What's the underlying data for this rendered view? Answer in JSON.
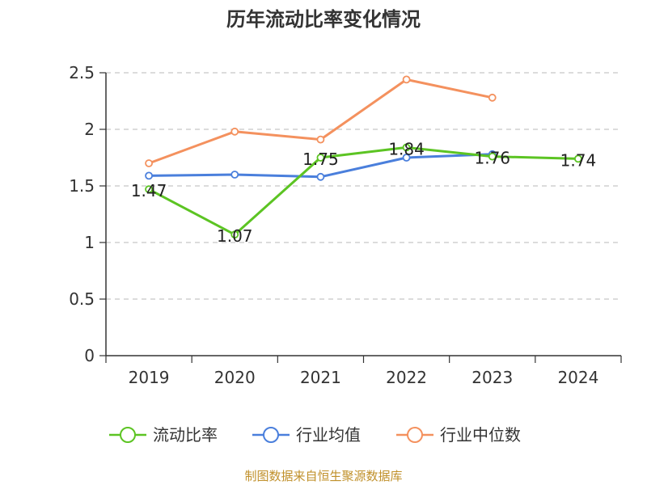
{
  "chart_data": {
    "type": "line",
    "title": "历年流动比率变化情况",
    "categories": [
      "2019",
      "2020",
      "2021",
      "2022",
      "2023",
      "2024"
    ],
    "ylim": [
      0,
      2.5
    ],
    "yticks": [
      "0",
      "0.5",
      "1",
      "1.5",
      "2",
      "2.5"
    ],
    "ytick_values": [
      0,
      0.5,
      1,
      1.5,
      2,
      2.5
    ],
    "grid": true,
    "legend_position": "bottom",
    "series": [
      {
        "name": "流动比率",
        "color": "#5cc423",
        "values": [
          1.47,
          1.07,
          1.75,
          1.84,
          1.76,
          1.74
        ],
        "labels": [
          "1.47",
          "1.07",
          "1.75",
          "1.84",
          "1.76",
          "1.74"
        ]
      },
      {
        "name": "行业均值",
        "color": "#4a7fdc",
        "values": [
          1.59,
          1.6,
          1.58,
          1.75,
          1.78,
          null
        ]
      },
      {
        "name": "行业中位数",
        "color": "#f4915e",
        "values": [
          1.7,
          1.98,
          1.91,
          2.44,
          2.28,
          null
        ]
      }
    ]
  },
  "footer": "制图数据来自恒生聚源数据库"
}
